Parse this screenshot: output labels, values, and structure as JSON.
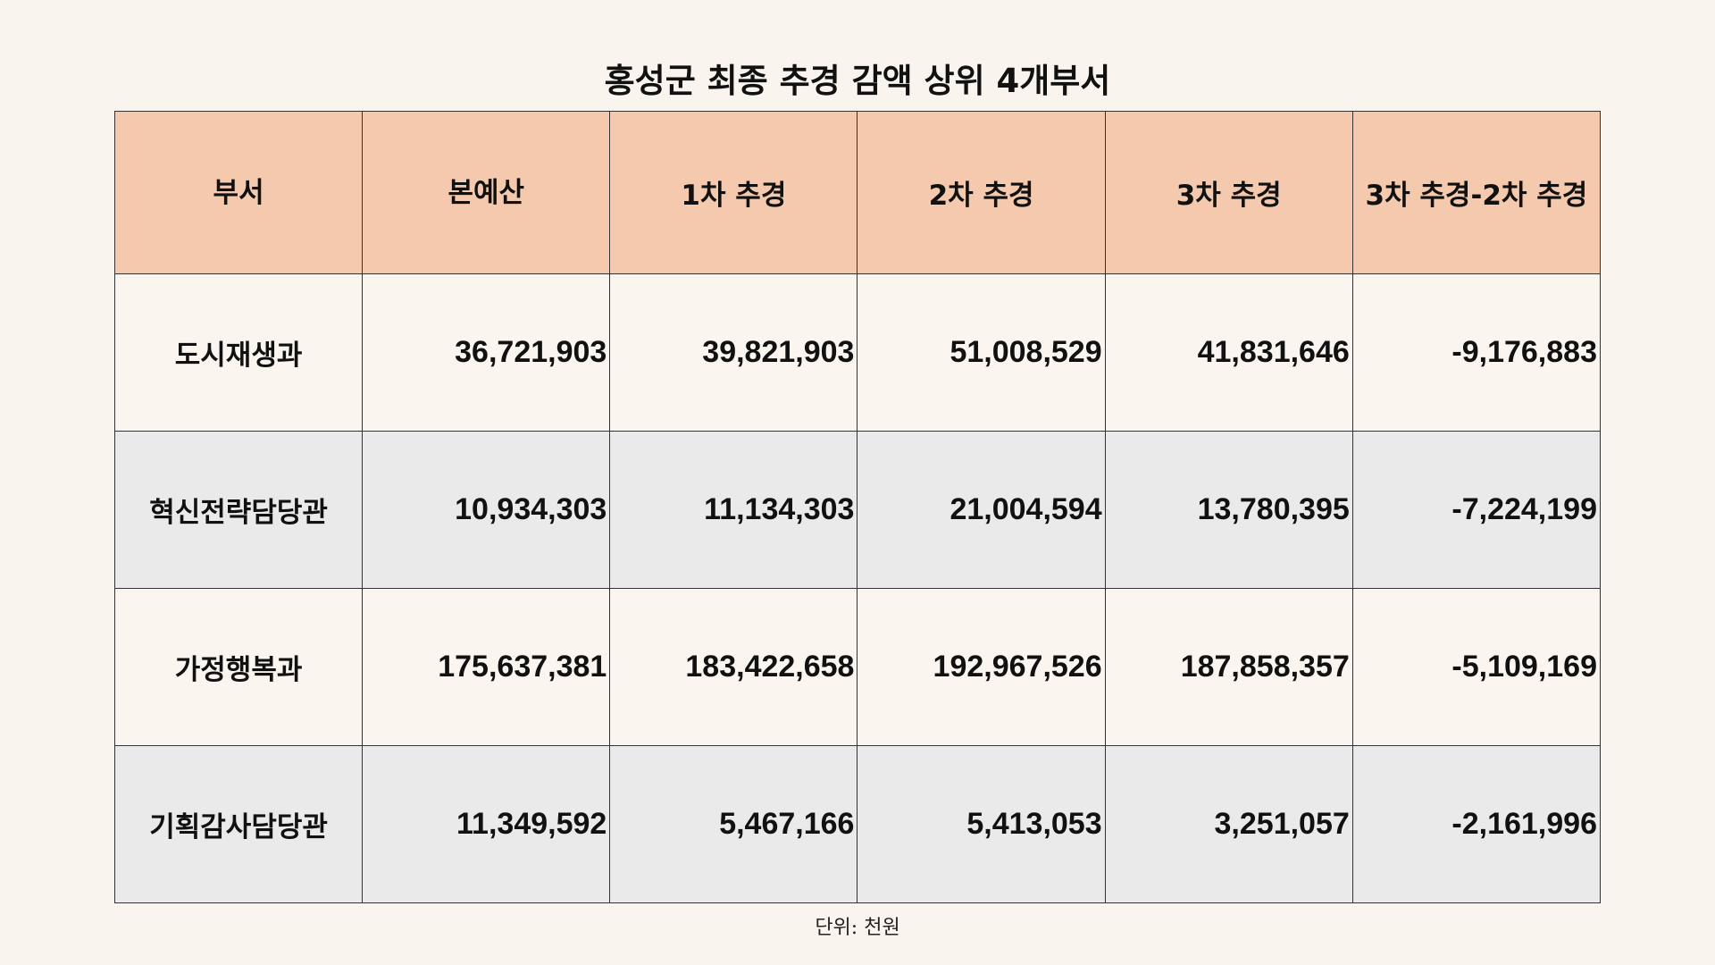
{
  "title": "홍성군 최종 추경 감액 상위 4개부서",
  "table": {
    "headers": [
      "부서",
      "본예산",
      "1차 추경",
      "2차 추경",
      "3차 추경",
      "3차 추경-2차 추경"
    ],
    "rows": [
      [
        "도시재생과",
        "36,721,903",
        "39,821,903",
        "51,008,529",
        "41,831,646",
        "-9,176,883"
      ],
      [
        "혁신전략담당관",
        "10,934,303",
        "11,134,303",
        "21,004,594",
        "13,780,395",
        "-7,224,199"
      ],
      [
        "가정행복과",
        "175,637,381",
        "183,422,658",
        "192,967,526",
        "187,858,357",
        "-5,109,169"
      ],
      [
        "기획감사담당관",
        "11,349,592",
        "5,467,166",
        "5,413,053",
        "3,251,057",
        "-2,161,996"
      ]
    ]
  },
  "unit": "단위: 천원",
  "colors": {
    "header_bg": "#f4c9ad",
    "row_light": "#faf5ef",
    "row_gray": "#ebeaea",
    "page_bg": "#f9f4ee"
  }
}
